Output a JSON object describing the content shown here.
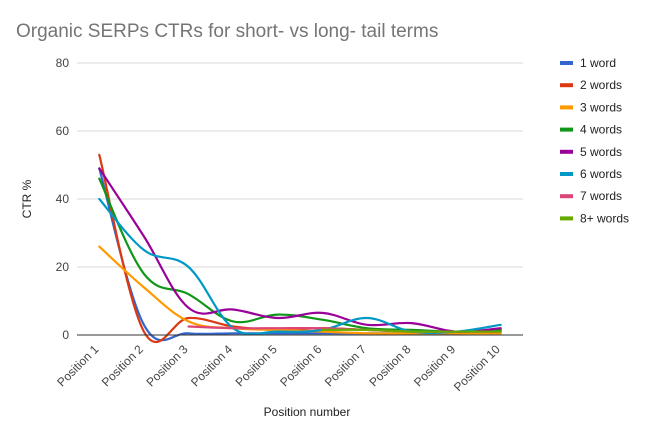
{
  "chart_data": {
    "type": "line",
    "title": "Organic SERPs CTRs for short- vs long- tail terms",
    "xlabel": "Position number",
    "ylabel": "CTR %",
    "ylim": [
      0,
      80
    ],
    "yticks": [
      0,
      20,
      40,
      60,
      80
    ],
    "grid": true,
    "legend_position": "right",
    "smooth": true,
    "categories": [
      "Position  1",
      "Position  2",
      "Position  3",
      "Position  4",
      "Position  5",
      "Position  6",
      "Position  7",
      "Position  8",
      "Position  9",
      "Position 10"
    ],
    "series": [
      {
        "name": "1 word",
        "color": "#3366cc",
        "values": [
          49,
          3,
          0.5,
          0.5,
          0.5,
          0.5,
          0.5,
          0.5,
          0.5,
          1
        ]
      },
      {
        "name": "2 words",
        "color": "#dc3912",
        "values": [
          53,
          1,
          5,
          2.5,
          1.5,
          2,
          1.5,
          1,
          1,
          1.5
        ]
      },
      {
        "name": "3 words",
        "color": "#ff9900",
        "values": [
          26,
          14,
          4,
          2,
          1.5,
          1,
          0.5,
          0.5,
          0.5,
          0.5
        ]
      },
      {
        "name": "4 words",
        "color": "#109618",
        "values": [
          46,
          18,
          12,
          4,
          6,
          4.5,
          2,
          1.5,
          1,
          1.5
        ]
      },
      {
        "name": "5 words",
        "color": "#990099",
        "values": [
          49,
          29,
          8,
          7.5,
          5,
          6.5,
          3,
          3.5,
          1,
          2
        ]
      },
      {
        "name": "6 words",
        "color": "#0099c6",
        "values": [
          40,
          25,
          20,
          2,
          1,
          1.5,
          5,
          1,
          1,
          3
        ]
      },
      {
        "name": "7 words",
        "color": "#dd4477",
        "values": [
          null,
          null,
          2.5,
          2,
          2,
          2,
          1.5,
          1,
          1,
          1
        ]
      },
      {
        "name": "8+ words",
        "color": "#66aa00",
        "values": [
          null,
          null,
          null,
          null,
          null,
          1.5,
          1.5,
          1,
          1,
          1
        ]
      }
    ]
  }
}
